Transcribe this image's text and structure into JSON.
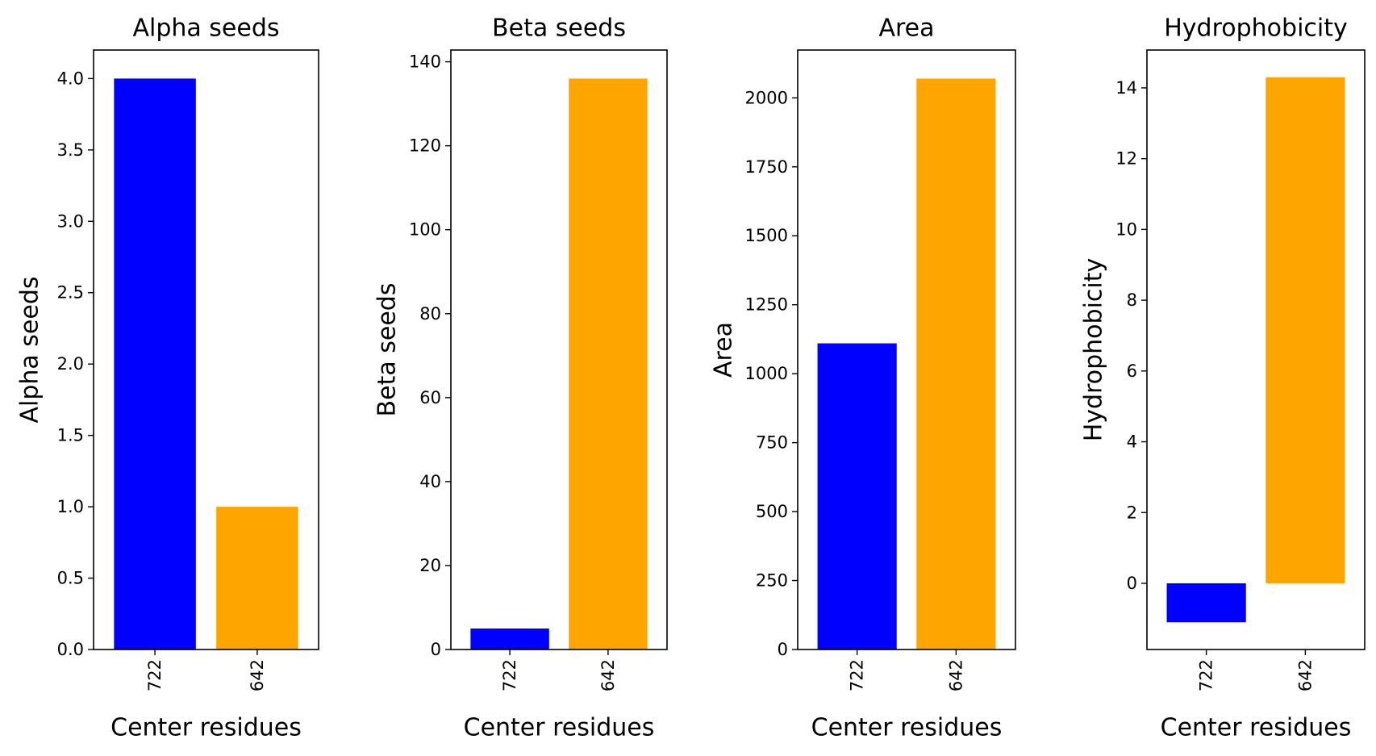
{
  "chart_data": [
    {
      "type": "bar",
      "title": "Alpha seeds",
      "xlabel": "Center residues",
      "ylabel": "Alpha seeds",
      "categories": [
        "722",
        "642"
      ],
      "values": [
        4.0,
        1.0
      ],
      "colors": [
        "#0000ff",
        "#ffa500"
      ],
      "ylim": [
        0,
        4.2
      ],
      "yticks": [
        0.0,
        0.5,
        1.0,
        1.5,
        2.0,
        2.5,
        3.0,
        3.5,
        4.0
      ],
      "ytick_labels": [
        "0.0",
        "0.5",
        "1.0",
        "1.5",
        "2.0",
        "2.5",
        "3.0",
        "3.5",
        "4.0"
      ],
      "grid": false
    },
    {
      "type": "bar",
      "title": "Beta seeds",
      "xlabel": "Center residues",
      "ylabel": "Beta seeds",
      "categories": [
        "722",
        "642"
      ],
      "values": [
        5,
        136
      ],
      "colors": [
        "#0000ff",
        "#ffa500"
      ],
      "ylim": [
        0,
        142.8
      ],
      "yticks": [
        0,
        20,
        40,
        60,
        80,
        100,
        120,
        140
      ],
      "ytick_labels": [
        "0",
        "20",
        "40",
        "60",
        "80",
        "100",
        "120",
        "140"
      ],
      "grid": false
    },
    {
      "type": "bar",
      "title": "Area",
      "xlabel": "Center residues",
      "ylabel": "Area",
      "categories": [
        "722",
        "642"
      ],
      "values": [
        1110,
        2070
      ],
      "colors": [
        "#0000ff",
        "#ffa500"
      ],
      "ylim": [
        0,
        2173.5
      ],
      "yticks": [
        0,
        250,
        500,
        750,
        1000,
        1250,
        1500,
        1750,
        2000
      ],
      "ytick_labels": [
        "0",
        "250",
        "500",
        "750",
        "1000",
        "1250",
        "1500",
        "1750",
        "2000"
      ],
      "grid": false
    },
    {
      "type": "bar",
      "title": "Hydrophobicity",
      "xlabel": "Center residues",
      "ylabel": "Hydrophobicity",
      "categories": [
        "722",
        "642"
      ],
      "values": [
        -1.1,
        14.3
      ],
      "colors": [
        "#0000ff",
        "#ffa500"
      ],
      "ylim": [
        -1.87,
        15.07
      ],
      "yticks": [
        0,
        2,
        4,
        6,
        8,
        10,
        12,
        14
      ],
      "ytick_labels": [
        "0",
        "2",
        "4",
        "6",
        "8",
        "10",
        "12",
        "14"
      ],
      "grid": false
    }
  ]
}
